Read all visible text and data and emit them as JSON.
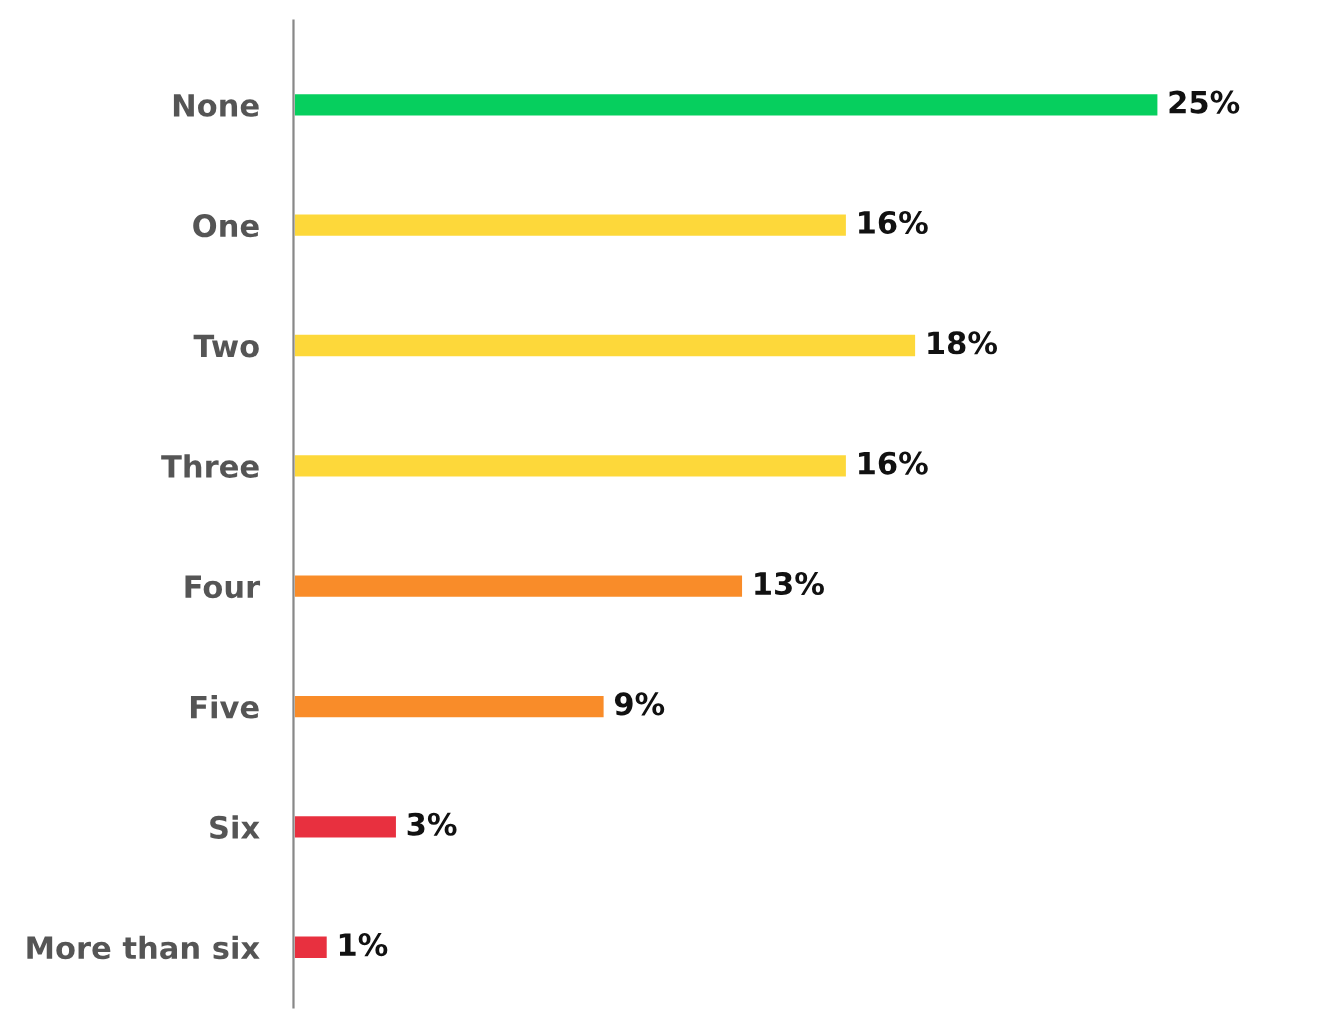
{
  "chart_data": {
    "type": "bar",
    "orientation": "horizontal",
    "categories": [
      "None",
      "One",
      "Two",
      "Three",
      "Four",
      "Five",
      "Six",
      "More than six"
    ],
    "values": [
      25,
      16,
      18,
      16,
      13,
      9,
      3,
      1
    ],
    "colors": [
      "#06cf5e",
      "#fdd83a",
      "#fdd83a",
      "#fdd83a",
      "#f98c29",
      "#f98c29",
      "#e8303f",
      "#e8303f"
    ],
    "value_labels": [
      "25%",
      "16%",
      "18%",
      "16%",
      "13%",
      "9%",
      "3%",
      "1%"
    ],
    "tick_labels": "y"
  }
}
